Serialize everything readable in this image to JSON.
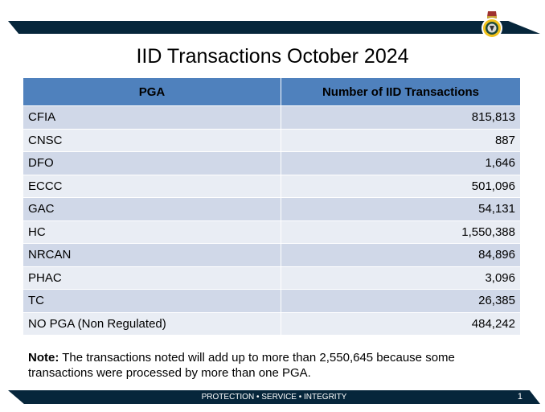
{
  "title": "IID Transactions October 2024",
  "table": {
    "headers": [
      "PGA",
      "Number of IID Transactions"
    ],
    "rows": [
      {
        "pga": "CFIA",
        "count": "815,813"
      },
      {
        "pga": "CNSC",
        "count": "887"
      },
      {
        "pga": "DFO",
        "count": "1,646"
      },
      {
        "pga": "ECCC",
        "count": "501,096"
      },
      {
        "pga": "GAC",
        "count": "54,131"
      },
      {
        "pga": "HC",
        "count": "1,550,388"
      },
      {
        "pga": "NRCAN",
        "count": "84,896"
      },
      {
        "pga": "PHAC",
        "count": "3,096"
      },
      {
        "pga": "TC",
        "count": "26,385"
      },
      {
        "pga": "NO PGA (Non Regulated)",
        "count": "484,242"
      }
    ]
  },
  "note": {
    "label": "Note:",
    "text": " The transactions noted will add up to more than 2,550,645 because some transactions were processed by more than one PGA."
  },
  "footer": {
    "motto": "PROTECTION • SERVICE • INTEGRITY",
    "page_number": "1"
  },
  "colors": {
    "banner": "#06263b",
    "header": "#4f81bd",
    "row_odd": "#d0d8e8",
    "row_even": "#e9edf4"
  }
}
